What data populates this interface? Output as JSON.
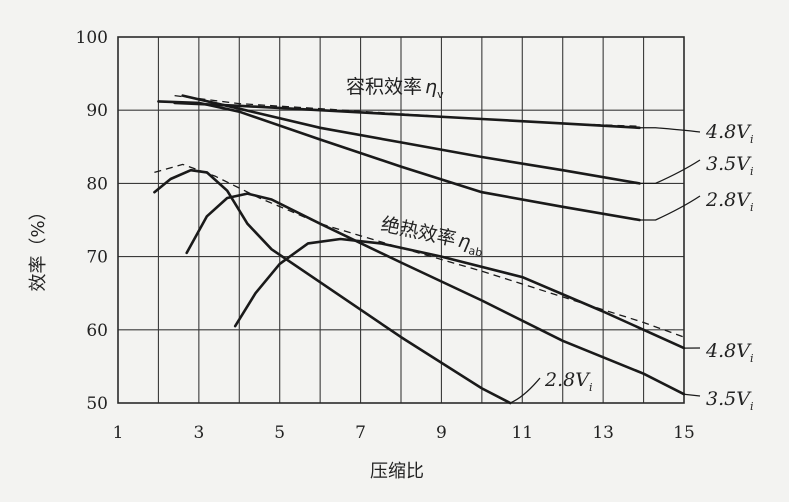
{
  "chart_data": {
    "type": "line",
    "xlabel": "压缩比",
    "ylabel": "效率（%）",
    "xlim": [
      1,
      15
    ],
    "ylim": [
      50,
      100
    ],
    "x_ticks": [
      1,
      3,
      5,
      7,
      9,
      11,
      13,
      15
    ],
    "y_ticks": [
      50,
      60,
      70,
      80,
      90,
      100
    ],
    "grid": true,
    "annotations": {
      "volumetric": {
        "text": "容积效率",
        "symbol": "η",
        "sub": "v"
      },
      "adiabatic": {
        "text": "绝热效率",
        "symbol": "η",
        "sub": "ab"
      }
    },
    "series": [
      {
        "group": "volumetric",
        "label": "4.8V",
        "label_sub": "i",
        "points": [
          [
            2.4,
            91.0
          ],
          [
            4.0,
            90.6
          ],
          [
            6.0,
            90.0
          ],
          [
            8.0,
            89.4
          ],
          [
            10.0,
            88.8
          ],
          [
            12.0,
            88.2
          ],
          [
            13.9,
            87.6
          ]
        ]
      },
      {
        "group": "volumetric",
        "label": "3.5V",
        "label_sub": "i",
        "points": [
          [
            2.6,
            92.0
          ],
          [
            4.0,
            90.2
          ],
          [
            6.0,
            87.6
          ],
          [
            8.0,
            85.6
          ],
          [
            10.0,
            83.6
          ],
          [
            12.0,
            81.8
          ],
          [
            13.9,
            80.0
          ]
        ]
      },
      {
        "group": "volumetric",
        "label": "2.8V",
        "label_sub": "i",
        "points": [
          [
            2.0,
            91.2
          ],
          [
            3.0,
            91.0
          ],
          [
            4.0,
            89.8
          ],
          [
            6.0,
            86.0
          ],
          [
            8.0,
            82.3
          ],
          [
            10.0,
            78.8
          ],
          [
            12.0,
            76.8
          ],
          [
            13.9,
            75.0
          ]
        ]
      },
      {
        "group": "adiabatic",
        "label": "2.8V",
        "label_sub": "i",
        "points": [
          [
            1.9,
            78.8
          ],
          [
            2.3,
            80.6
          ],
          [
            2.8,
            81.8
          ],
          [
            3.2,
            81.5
          ],
          [
            3.7,
            79.0
          ],
          [
            4.2,
            74.5
          ],
          [
            4.8,
            71.0
          ],
          [
            6.0,
            66.5
          ],
          [
            8.0,
            59.0
          ],
          [
            10.0,
            52.0
          ],
          [
            10.7,
            50.0
          ]
        ]
      },
      {
        "group": "adiabatic",
        "label": "3.5V",
        "label_sub": "i",
        "points": [
          [
            2.7,
            70.5
          ],
          [
            3.2,
            75.5
          ],
          [
            3.7,
            78.0
          ],
          [
            4.2,
            78.6
          ],
          [
            4.8,
            77.8
          ],
          [
            6.0,
            74.5
          ],
          [
            8.0,
            69.2
          ],
          [
            10.0,
            64.0
          ],
          [
            12.0,
            58.5
          ],
          [
            14.0,
            54.0
          ],
          [
            15.0,
            51.2
          ]
        ]
      },
      {
        "group": "adiabatic",
        "label": "4.8V",
        "label_sub": "i",
        "points": [
          [
            3.9,
            60.5
          ],
          [
            4.4,
            65.0
          ],
          [
            5.0,
            69.0
          ],
          [
            5.7,
            71.8
          ],
          [
            6.5,
            72.4
          ],
          [
            7.5,
            71.8
          ],
          [
            9.0,
            70.0
          ],
          [
            11.0,
            67.2
          ],
          [
            13.0,
            62.5
          ],
          [
            15.0,
            57.5
          ]
        ]
      }
    ],
    "envelopes": [
      {
        "group": "volumetric",
        "points": [
          [
            2.4,
            92.0
          ],
          [
            4.0,
            90.9
          ],
          [
            6.0,
            90.2
          ],
          [
            8.0,
            89.5
          ],
          [
            10.0,
            88.8
          ],
          [
            12.0,
            88.2
          ],
          [
            13.9,
            87.8
          ]
        ]
      },
      {
        "group": "adiabatic",
        "points": [
          [
            1.9,
            81.5
          ],
          [
            2.6,
            82.6
          ],
          [
            3.4,
            81.0
          ],
          [
            4.5,
            78.0
          ],
          [
            6.0,
            74.5
          ],
          [
            8.0,
            71.2
          ],
          [
            10.0,
            68.0
          ],
          [
            12.0,
            64.5
          ],
          [
            14.0,
            61.0
          ],
          [
            15.0,
            59.0
          ]
        ]
      }
    ]
  }
}
